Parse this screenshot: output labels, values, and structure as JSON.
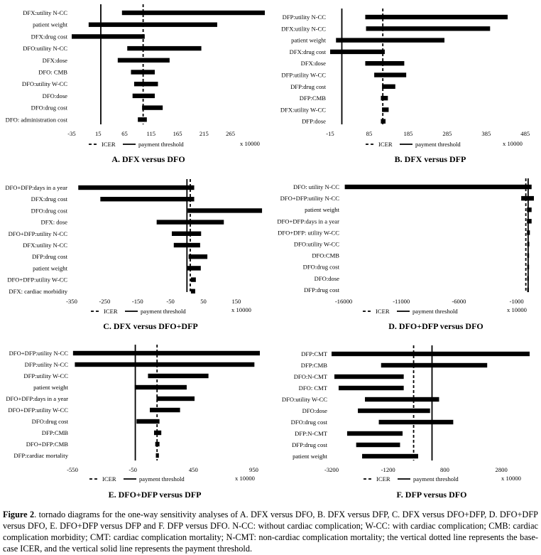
{
  "figure": {
    "caption_label": "Figure",
    "caption_number": " 2",
    "caption_text": ". tornado diagrams for the one-way sensitivity analyses of A. DFX versus DFO, B. DFX versus DFP, C. DFX versus DFO+DFP, D. DFO+DFP versus DFO, E. DFO+DFP versus DFP and F. DFP versus DFO. N-CC: without cardiac complication; W-CC: with cardiac complication; CMB: cardiac complication morbidity; CMT: cardiac complication mortality; N-CMT: non-cardiac complication mortality; the vertical dotted line represents the base-case ICER, and the vertical solid line represents the payment threshold."
  },
  "legend": {
    "icer": "ICER",
    "threshold": "payment threshold"
  },
  "chart_data": [
    {
      "type": "tornado",
      "title": "A. DFX versus DFO",
      "unit": "x 10000",
      "xlim": [
        -35,
        330
      ],
      "ticks": [
        -35,
        15,
        65,
        115,
        165,
        215,
        265
      ],
      "icer": 100,
      "threshold": 20,
      "bars": [
        {
          "label": "DFX:utility N-CC",
          "low": 60,
          "high": 330
        },
        {
          "label": "patient weight",
          "low": -3,
          "high": 240
        },
        {
          "label": "DFX:drug cost",
          "low": -35,
          "high": 103
        },
        {
          "label": "DFO:utility N-CC",
          "low": 70,
          "high": 210
        },
        {
          "label": "DFX:dose",
          "low": 52,
          "high": 150
        },
        {
          "label": "DFO: CMB",
          "low": 77,
          "high": 122
        },
        {
          "label": "DFO:utility W-CC",
          "low": 83,
          "high": 128
        },
        {
          "label": "DFO:dose",
          "low": 80,
          "high": 122
        },
        {
          "label": "DFO:drug cost",
          "low": 98,
          "high": 137
        },
        {
          "label": "DFO: administration cost",
          "low": 90,
          "high": 107
        }
      ]
    },
    {
      "type": "tornado",
      "title": "B. DFX versus DFP",
      "unit": "x 10000",
      "xlim": [
        -15,
        500
      ],
      "ticks": [
        -15,
        85,
        185,
        285,
        385,
        485
      ],
      "icer": 120,
      "threshold": 15,
      "bars": [
        {
          "label": "DFP:utility N-CC",
          "low": 75,
          "high": 440
        },
        {
          "label": "DFX:utility N-CC",
          "low": 77,
          "high": 395
        },
        {
          "label": "patient weight",
          "low": 0,
          "high": 278
        },
        {
          "label": "DFX:drug cost",
          "low": -15,
          "high": 125
        },
        {
          "label": "DFX:dose",
          "low": 75,
          "high": 175
        },
        {
          "label": "DFP:utility W-CC",
          "low": 98,
          "high": 180
        },
        {
          "label": "DFP:drug cost",
          "low": 118,
          "high": 152
        },
        {
          "label": "DFP:CMB",
          "low": 115,
          "high": 133
        },
        {
          "label": "DFX:utility W-CC",
          "low": 118,
          "high": 135
        },
        {
          "label": "DFP:dose",
          "low": 115,
          "high": 127
        }
      ]
    },
    {
      "type": "tornado",
      "title": "C. DFX versus DFO+DFP",
      "unit": "x 10000",
      "xlim": [
        -350,
        230
      ],
      "ticks": [
        -350,
        -250,
        -150,
        -50,
        50,
        150
      ],
      "icer": 10,
      "threshold": 0,
      "bars": [
        {
          "label": "DFO+DFP:days in a year",
          "low": -330,
          "high": 22
        },
        {
          "label": "DFX:drug cost",
          "low": -263,
          "high": 22
        },
        {
          "label": "DFO:drug cost",
          "low": 2,
          "high": 228
        },
        {
          "label": "DFX: dose",
          "low": -92,
          "high": 112
        },
        {
          "label": "DFO+DFP:utility N-CC",
          "low": -46,
          "high": 43
        },
        {
          "label": "DFX:utility N-CC",
          "low": -40,
          "high": 40
        },
        {
          "label": "DFP:drug cost",
          "low": 5,
          "high": 62
        },
        {
          "label": "patient weight",
          "low": 1,
          "high": 42
        },
        {
          "label": "DFO+DFP:utility W-CC",
          "low": 12,
          "high": 27
        },
        {
          "label": "DFX: cardiac morbidity",
          "low": 12,
          "high": 25
        }
      ]
    },
    {
      "type": "tornado",
      "title": "D. DFO+DFP versus DFO",
      "unit": "x 10000",
      "xlim": [
        -16000,
        500
      ],
      "ticks": [
        -16000,
        -11000,
        -6000,
        -1000
      ],
      "icer": -200,
      "threshold": 0,
      "bars": [
        {
          "label": "DFO: utility N-CC",
          "low": -15900,
          "high": 300
        },
        {
          "label": "DFO+DFP:utility N-CC",
          "low": -600,
          "high": 500
        },
        {
          "label": "patient weight",
          "low": -100,
          "high": 300
        },
        {
          "label": "DFO+DFP:days in a year",
          "low": -100,
          "high": 300
        },
        {
          "label": "DFO+DFP: utility W-CC",
          "low": -100,
          "high": 150
        },
        {
          "label": "DFO:utility W-CC",
          "low": -80,
          "high": 100
        },
        {
          "label": "DFO:CMB",
          "low": -80,
          "high": 80
        },
        {
          "label": "DFO:drug cost",
          "low": -80,
          "high": 80
        },
        {
          "label": "DFO:dose",
          "low": -80,
          "high": 60
        },
        {
          "label": "DFP:drug cost",
          "low": -80,
          "high": 60
        }
      ]
    },
    {
      "type": "tornado",
      "title": "E. DFO+DFP versus DFP",
      "unit": "x 10000",
      "xlim": [
        -550,
        1000
      ],
      "ticks": [
        -550,
        -50,
        450,
        950
      ],
      "icer": 150,
      "threshold": -30,
      "bars": [
        {
          "label": "DFO+DFP:utility N-CC",
          "low": -545,
          "high": 1000
        },
        {
          "label": "DFP:utility N-CC",
          "low": -530,
          "high": 955
        },
        {
          "label": "DFP:utility W-CC",
          "low": 75,
          "high": 575
        },
        {
          "label": "patient weight",
          "low": -35,
          "high": 395
        },
        {
          "label": "DFO+DFP:days in a year",
          "low": 145,
          "high": 460
        },
        {
          "label": "DFO+DFP:utility W-CC",
          "low": 90,
          "high": 340
        },
        {
          "label": "DFO:drug cost",
          "low": -20,
          "high": 170
        },
        {
          "label": "DFP:CMB",
          "low": 125,
          "high": 185
        },
        {
          "label": "DFO+DFP:CMB",
          "low": 135,
          "high": 170
        },
        {
          "label": "DFP:cardiac mortality",
          "low": 140,
          "high": 165
        }
      ]
    },
    {
      "type": "tornado",
      "title": "F. DFP versus DFO",
      "unit": "x 10000",
      "xlim": [
        -3200,
        3800
      ],
      "ticks": [
        -3200,
        -1200,
        800,
        2800
      ],
      "icer": -300,
      "threshold": 350,
      "bars": [
        {
          "label": "DFP:CMT",
          "low": -3200,
          "high": 3800
        },
        {
          "label": "DFP:CMB",
          "low": -1450,
          "high": 2300
        },
        {
          "label": "DFO:N-CMT",
          "low": -3100,
          "high": -650
        },
        {
          "label": "DFO: CMT",
          "low": -2950,
          "high": -650
        },
        {
          "label": "DFO:utility W-CC",
          "low": -2020,
          "high": 600
        },
        {
          "label": "DFO:dose",
          "low": -2270,
          "high": 280
        },
        {
          "label": "DFO:drug cost",
          "low": -1530,
          "high": 1100
        },
        {
          "label": "DFP:N-CMT",
          "low": -2650,
          "high": -690
        },
        {
          "label": "DFP:drug cost",
          "low": -2330,
          "high": -780
        },
        {
          "label": "patient weight",
          "low": -2120,
          "high": -140
        }
      ]
    }
  ]
}
